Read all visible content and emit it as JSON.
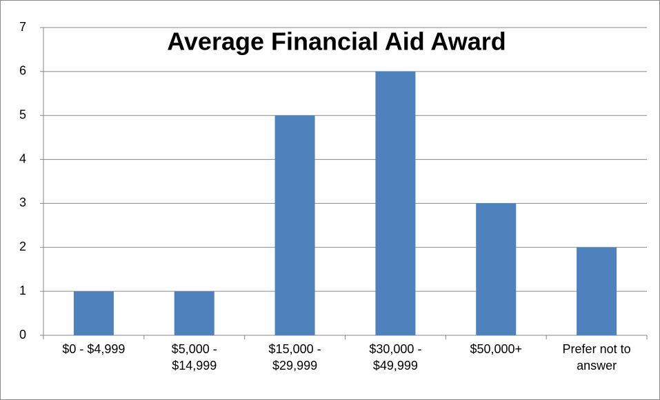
{
  "chart_data": {
    "type": "bar",
    "title": "Average Financial Aid Award",
    "categories": [
      "$0 - $4,999",
      "$5,000 - $14,999",
      "$15,000 - $29,999",
      "$30,000 - $49,999",
      "$50,000+",
      "Prefer not to answer"
    ],
    "values": [
      1,
      1,
      5,
      6,
      3,
      2
    ],
    "color": "#4f81bd",
    "ylim": [
      0,
      7
    ],
    "yticks": [
      0,
      1,
      2,
      3,
      4,
      5,
      6,
      7
    ],
    "grid": true
  }
}
